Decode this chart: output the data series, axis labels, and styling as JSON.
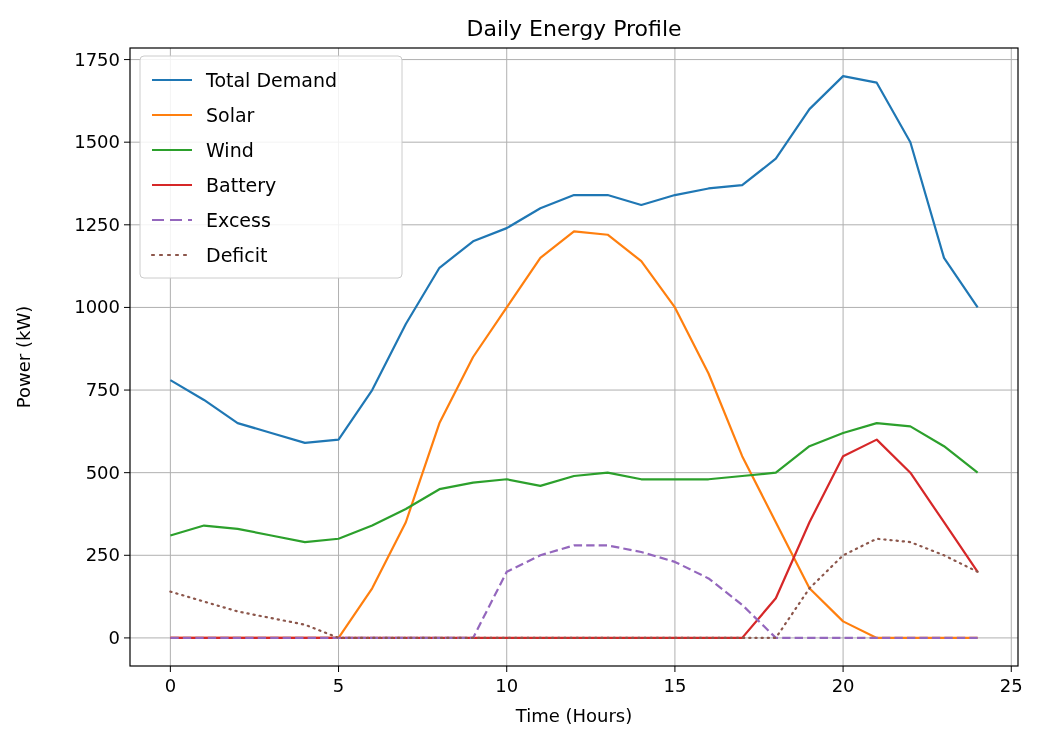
{
  "chart_data": {
    "type": "line",
    "title": "Daily Energy Profile",
    "xlabel": "Time (Hours)",
    "ylabel": "Power (kW)",
    "x": [
      0,
      1,
      2,
      3,
      4,
      5,
      6,
      7,
      8,
      9,
      10,
      11,
      12,
      13,
      14,
      15,
      16,
      17,
      18,
      19,
      20,
      21,
      22,
      23,
      24
    ],
    "xlim": [
      -1.2,
      25.2
    ],
    "xticks": [
      0,
      5,
      10,
      15,
      20,
      25
    ],
    "ylim": [
      -85,
      1785
    ],
    "yticks": [
      0,
      250,
      500,
      750,
      1000,
      1250,
      1500,
      1750
    ],
    "grid": true,
    "legend": "top left",
    "series": [
      {
        "name": "Total Demand",
        "color": "#1f77b4",
        "line_style": "solid",
        "values": [
          780,
          720,
          650,
          620,
          590,
          600,
          750,
          950,
          1120,
          1200,
          1240,
          1300,
          1340,
          1340,
          1310,
          1340,
          1360,
          1370,
          1450,
          1600,
          1700,
          1680,
          1500,
          1150,
          1000
        ]
      },
      {
        "name": "Solar",
        "color": "#ff7f0e",
        "line_style": "solid",
        "values": [
          0,
          0,
          0,
          0,
          0,
          0,
          150,
          350,
          650,
          850,
          1000,
          1150,
          1230,
          1220,
          1140,
          1000,
          800,
          550,
          350,
          150,
          50,
          0,
          0,
          0,
          0
        ]
      },
      {
        "name": "Wind",
        "color": "#2ca02c",
        "line_style": "solid",
        "values": [
          310,
          340,
          330,
          310,
          290,
          300,
          340,
          390,
          450,
          470,
          480,
          460,
          490,
          500,
          480,
          480,
          480,
          490,
          500,
          580,
          620,
          650,
          640,
          580,
          500
        ]
      },
      {
        "name": "Battery",
        "color": "#d62728",
        "line_style": "solid",
        "values": [
          0,
          0,
          0,
          0,
          0,
          0,
          0,
          0,
          0,
          0,
          0,
          0,
          0,
          0,
          0,
          0,
          0,
          0,
          120,
          350,
          550,
          600,
          500,
          350,
          200
        ]
      },
      {
        "name": "Excess",
        "color": "#9467bd",
        "line_style": "dashed",
        "values": [
          0,
          0,
          0,
          0,
          0,
          0,
          0,
          0,
          0,
          0,
          200,
          250,
          280,
          280,
          260,
          230,
          180,
          100,
          0,
          0,
          0,
          0,
          0,
          0,
          0
        ]
      },
      {
        "name": "Deficit",
        "color": "#8c564b",
        "line_style": "dotted",
        "values": [
          140,
          110,
          80,
          60,
          40,
          0,
          0,
          0,
          0,
          0,
          0,
          0,
          0,
          0,
          0,
          0,
          0,
          0,
          0,
          150,
          250,
          300,
          290,
          250,
          200
        ]
      }
    ]
  }
}
